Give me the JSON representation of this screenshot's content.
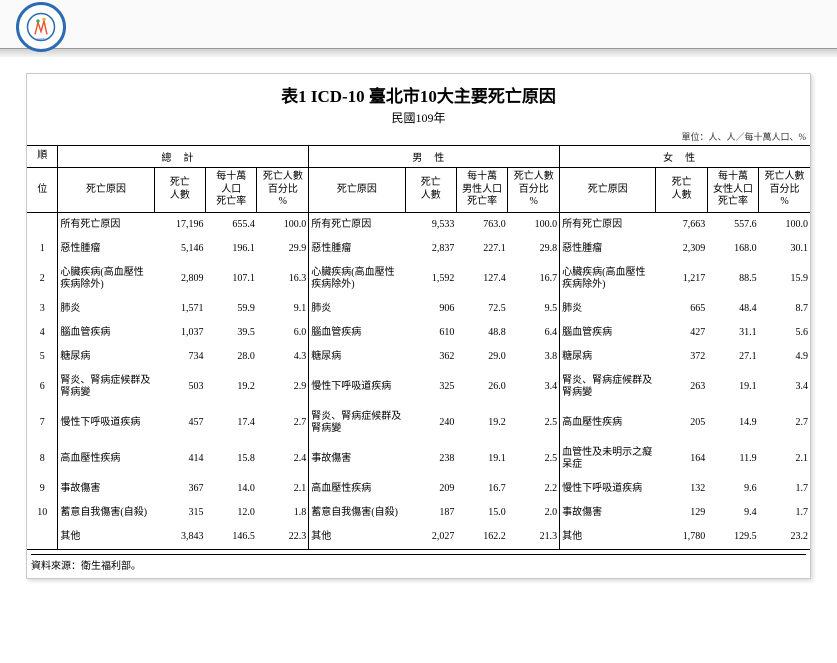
{
  "header": {
    "logo_name": "taipei-health-logo"
  },
  "title": "表1  ICD-10 臺北市10大主要死亡原因",
  "subtitle": "民國109年",
  "unit_note": "單位：人、人／每十萬人口、%",
  "source": "資料來源：衛生福利部。",
  "col_groups": [
    "總計",
    "男性",
    "女性"
  ],
  "col_labels": {
    "rank_top": "順",
    "rank_bot": "位",
    "cause": "死亡原因",
    "deaths": "死亡\n人數",
    "rate_total": "每十萬\n人口\n死亡率",
    "rate_male": "每十萬\n男性人口\n死亡率",
    "rate_female": "每十萬\n女性人口\n死亡率",
    "pct": "死亡人數\n百分比\n%"
  },
  "rows": [
    {
      "rank": "",
      "t": {
        "cause": "所有死亡原因",
        "deaths": "17,196",
        "rate": "655.4",
        "pct": "100.0"
      },
      "m": {
        "cause": "所有死亡原因",
        "deaths": "9,533",
        "rate": "763.0",
        "pct": "100.0"
      },
      "f": {
        "cause": "所有死亡原因",
        "deaths": "7,663",
        "rate": "557.6",
        "pct": "100.0"
      }
    },
    {
      "rank": "1",
      "t": {
        "cause": "惡性腫瘤",
        "deaths": "5,146",
        "rate": "196.1",
        "pct": "29.9"
      },
      "m": {
        "cause": "惡性腫瘤",
        "deaths": "2,837",
        "rate": "227.1",
        "pct": "29.8"
      },
      "f": {
        "cause": "惡性腫瘤",
        "deaths": "2,309",
        "rate": "168.0",
        "pct": "30.1"
      }
    },
    {
      "rank": "2",
      "t": {
        "cause": "心臟疾病(高血壓性疾病除外)",
        "deaths": "2,809",
        "rate": "107.1",
        "pct": "16.3"
      },
      "m": {
        "cause": "心臟疾病(高血壓性疾病除外)",
        "deaths": "1,592",
        "rate": "127.4",
        "pct": "16.7"
      },
      "f": {
        "cause": "心臟疾病(高血壓性疾病除外)",
        "deaths": "1,217",
        "rate": "88.5",
        "pct": "15.9"
      }
    },
    {
      "rank": "3",
      "t": {
        "cause": "肺炎",
        "deaths": "1,571",
        "rate": "59.9",
        "pct": "9.1"
      },
      "m": {
        "cause": "肺炎",
        "deaths": "906",
        "rate": "72.5",
        "pct": "9.5"
      },
      "f": {
        "cause": "肺炎",
        "deaths": "665",
        "rate": "48.4",
        "pct": "8.7"
      }
    },
    {
      "rank": "4",
      "t": {
        "cause": "腦血管疾病",
        "deaths": "1,037",
        "rate": "39.5",
        "pct": "6.0"
      },
      "m": {
        "cause": "腦血管疾病",
        "deaths": "610",
        "rate": "48.8",
        "pct": "6.4"
      },
      "f": {
        "cause": "腦血管疾病",
        "deaths": "427",
        "rate": "31.1",
        "pct": "5.6"
      }
    },
    {
      "rank": "5",
      "t": {
        "cause": "糖尿病",
        "deaths": "734",
        "rate": "28.0",
        "pct": "4.3"
      },
      "m": {
        "cause": "糖尿病",
        "deaths": "362",
        "rate": "29.0",
        "pct": "3.8"
      },
      "f": {
        "cause": "糖尿病",
        "deaths": "372",
        "rate": "27.1",
        "pct": "4.9"
      }
    },
    {
      "rank": "6",
      "t": {
        "cause": "腎炎、腎病症候群及腎病變",
        "deaths": "503",
        "rate": "19.2",
        "pct": "2.9"
      },
      "m": {
        "cause": "慢性下呼吸道疾病",
        "deaths": "325",
        "rate": "26.0",
        "pct": "3.4"
      },
      "f": {
        "cause": "腎炎、腎病症候群及腎病變",
        "deaths": "263",
        "rate": "19.1",
        "pct": "3.4"
      }
    },
    {
      "rank": "7",
      "t": {
        "cause": "慢性下呼吸道疾病",
        "deaths": "457",
        "rate": "17.4",
        "pct": "2.7"
      },
      "m": {
        "cause": "腎炎、腎病症候群及腎病變",
        "deaths": "240",
        "rate": "19.2",
        "pct": "2.5"
      },
      "f": {
        "cause": "高血壓性疾病",
        "deaths": "205",
        "rate": "14.9",
        "pct": "2.7"
      }
    },
    {
      "rank": "8",
      "t": {
        "cause": "高血壓性疾病",
        "deaths": "414",
        "rate": "15.8",
        "pct": "2.4"
      },
      "m": {
        "cause": "事故傷害",
        "deaths": "238",
        "rate": "19.1",
        "pct": "2.5"
      },
      "f": {
        "cause": "血管性及未明示之癡呆症",
        "deaths": "164",
        "rate": "11.9",
        "pct": "2.1"
      }
    },
    {
      "rank": "9",
      "t": {
        "cause": "事故傷害",
        "deaths": "367",
        "rate": "14.0",
        "pct": "2.1"
      },
      "m": {
        "cause": "高血壓性疾病",
        "deaths": "209",
        "rate": "16.7",
        "pct": "2.2"
      },
      "f": {
        "cause": "慢性下呼吸道疾病",
        "deaths": "132",
        "rate": "9.6",
        "pct": "1.7"
      }
    },
    {
      "rank": "10",
      "t": {
        "cause": "蓄意自我傷害(自殺)",
        "deaths": "315",
        "rate": "12.0",
        "pct": "1.8"
      },
      "m": {
        "cause": "蓄意自我傷害(自殺)",
        "deaths": "187",
        "rate": "15.0",
        "pct": "2.0"
      },
      "f": {
        "cause": "事故傷害",
        "deaths": "129",
        "rate": "9.4",
        "pct": "1.7"
      }
    },
    {
      "rank": "",
      "t": {
        "cause": "其他",
        "deaths": "3,843",
        "rate": "146.5",
        "pct": "22.3"
      },
      "m": {
        "cause": "其他",
        "deaths": "2,027",
        "rate": "162.2",
        "pct": "21.3"
      },
      "f": {
        "cause": "其他",
        "deaths": "1,780",
        "rate": "129.5",
        "pct": "23.2"
      }
    }
  ],
  "style": {
    "bg": "#ffffff",
    "border": "#000000",
    "header_bg": "#ffffff"
  }
}
